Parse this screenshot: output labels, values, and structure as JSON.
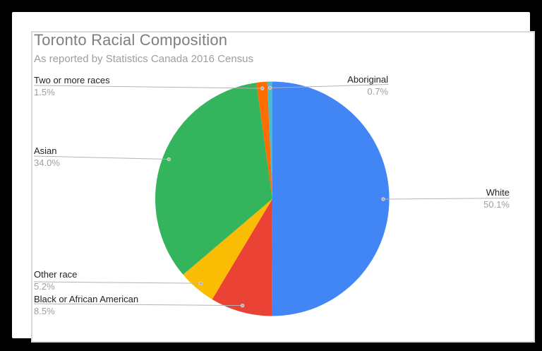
{
  "canvas": {
    "outer_background": "#000000",
    "card_background": "#ffffff",
    "frame_border_color": "#d9d9d9",
    "leader_line_color": "#b3b3b3",
    "leader_dot_fill": "#9e9e9e",
    "leader_dot_ring": "#cfcfcf",
    "label_text_color": "#222222",
    "percent_text_color": "#9e9e9e",
    "title_color": "#7e7e7e",
    "subtitle_color": "#9e9e9e"
  },
  "chart_data": {
    "type": "pie",
    "title": "Toronto Racial Composition",
    "subtitle": "As reported by Statistics Canada 2016 Census",
    "direction": "clockwise",
    "start_angle_deg": 0,
    "legend_position": "outside-leader-labels",
    "total": 100.0,
    "slices": [
      {
        "label": "White",
        "value": 50.1,
        "display_pct": "50.1%",
        "color": "#4285F4",
        "label_side": "right"
      },
      {
        "label": "Black or African American",
        "value": 8.5,
        "display_pct": "8.5%",
        "color": "#EA4335",
        "label_side": "left"
      },
      {
        "label": "Other race",
        "value": 5.2,
        "display_pct": "5.2%",
        "color": "#FBBC04",
        "label_side": "left"
      },
      {
        "label": "Asian",
        "value": 34.0,
        "display_pct": "34.0%",
        "color": "#34B45C",
        "label_side": "left"
      },
      {
        "label": "Two or more races",
        "value": 1.5,
        "display_pct": "1.5%",
        "color": "#FF6D01",
        "label_side": "left"
      },
      {
        "label": "Aboriginal",
        "value": 0.7,
        "display_pct": "0.7%",
        "color": "#46BDC6",
        "label_side": "right"
      }
    ]
  }
}
